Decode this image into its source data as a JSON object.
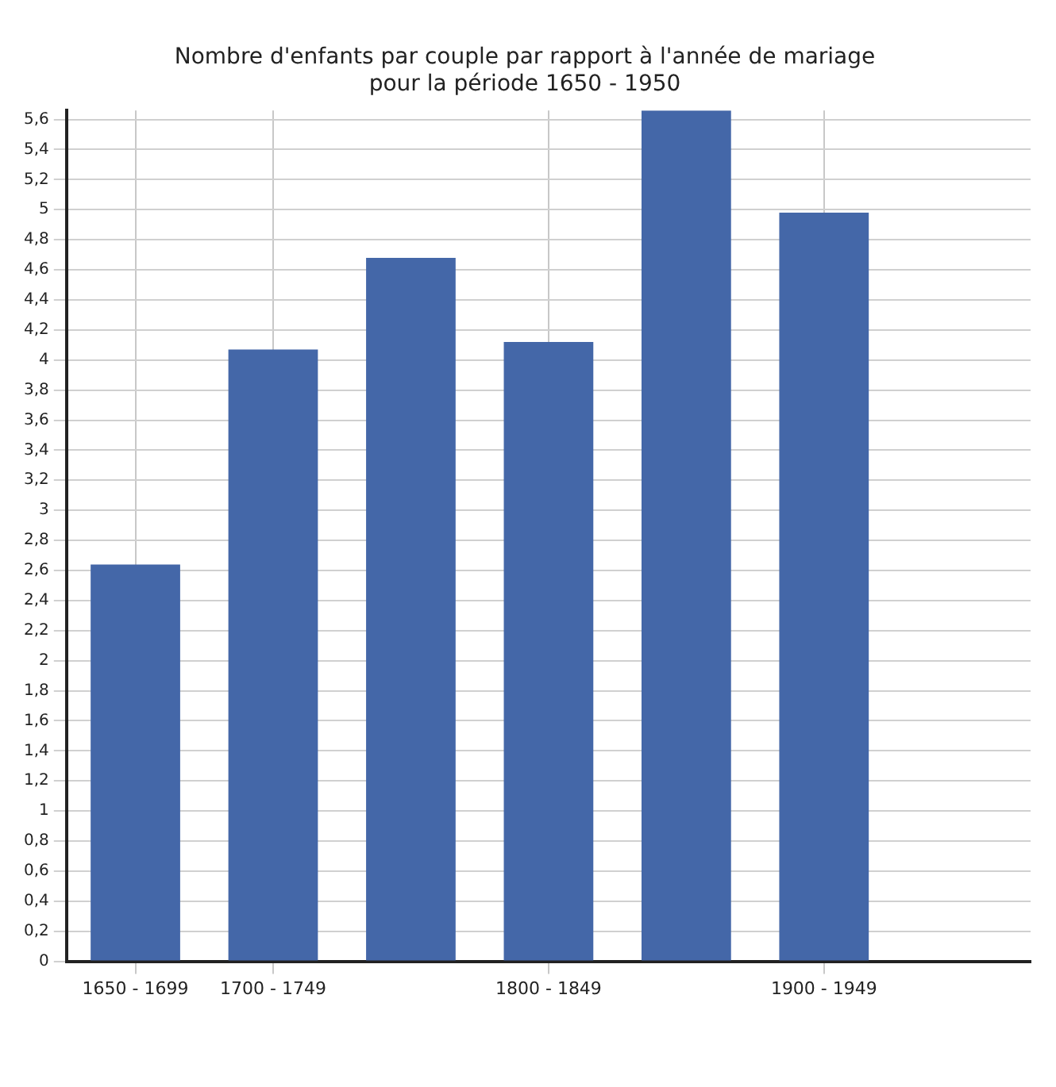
{
  "chart_data": {
    "type": "bar",
    "title": "Nombre d'enfants par couple par rapport à l'année de mariage",
    "subtitle": "pour la période 1650 - 1950",
    "categories": [
      "1650 - 1699",
      "1700 - 1749",
      null,
      "1800 - 1849",
      null,
      "1900 - 1949",
      null
    ],
    "values": [
      2.64,
      4.07,
      4.68,
      4.12,
      5.66,
      4.98,
      null
    ],
    "color": "#4467a8",
    "ylim": [
      0,
      5.66
    ],
    "yticks": [
      {
        "value": 0,
        "label": "0"
      },
      {
        "value": 0.2,
        "label": "0,2"
      },
      {
        "value": 0.4,
        "label": "0,4"
      },
      {
        "value": 0.6,
        "label": "0,6"
      },
      {
        "value": 0.8,
        "label": "0,8"
      },
      {
        "value": 1,
        "label": "1"
      },
      {
        "value": 1.2,
        "label": "1,2"
      },
      {
        "value": 1.4,
        "label": "1,4"
      },
      {
        "value": 1.6,
        "label": "1,6"
      },
      {
        "value": 1.8,
        "label": "1,8"
      },
      {
        "value": 2,
        "label": "2"
      },
      {
        "value": 2.2,
        "label": "2,2"
      },
      {
        "value": 2.4,
        "label": "2,4"
      },
      {
        "value": 2.6,
        "label": "2,6"
      },
      {
        "value": 2.8,
        "label": "2,8"
      },
      {
        "value": 3,
        "label": "3"
      },
      {
        "value": 3.2,
        "label": "3,2"
      },
      {
        "value": 3.4,
        "label": "3,4"
      },
      {
        "value": 3.6,
        "label": "3,6"
      },
      {
        "value": 3.8,
        "label": "3,8"
      },
      {
        "value": 4,
        "label": "4"
      },
      {
        "value": 4.2,
        "label": "4,2"
      },
      {
        "value": 4.4,
        "label": "4,4"
      },
      {
        "value": 4.6,
        "label": "4,6"
      },
      {
        "value": 4.8,
        "label": "4,8"
      },
      {
        "value": 5,
        "label": "5"
      },
      {
        "value": 5.2,
        "label": "5,2"
      },
      {
        "value": 5.4,
        "label": "5,4"
      },
      {
        "value": 5.6,
        "label": "5,6"
      }
    ],
    "grid": true
  }
}
